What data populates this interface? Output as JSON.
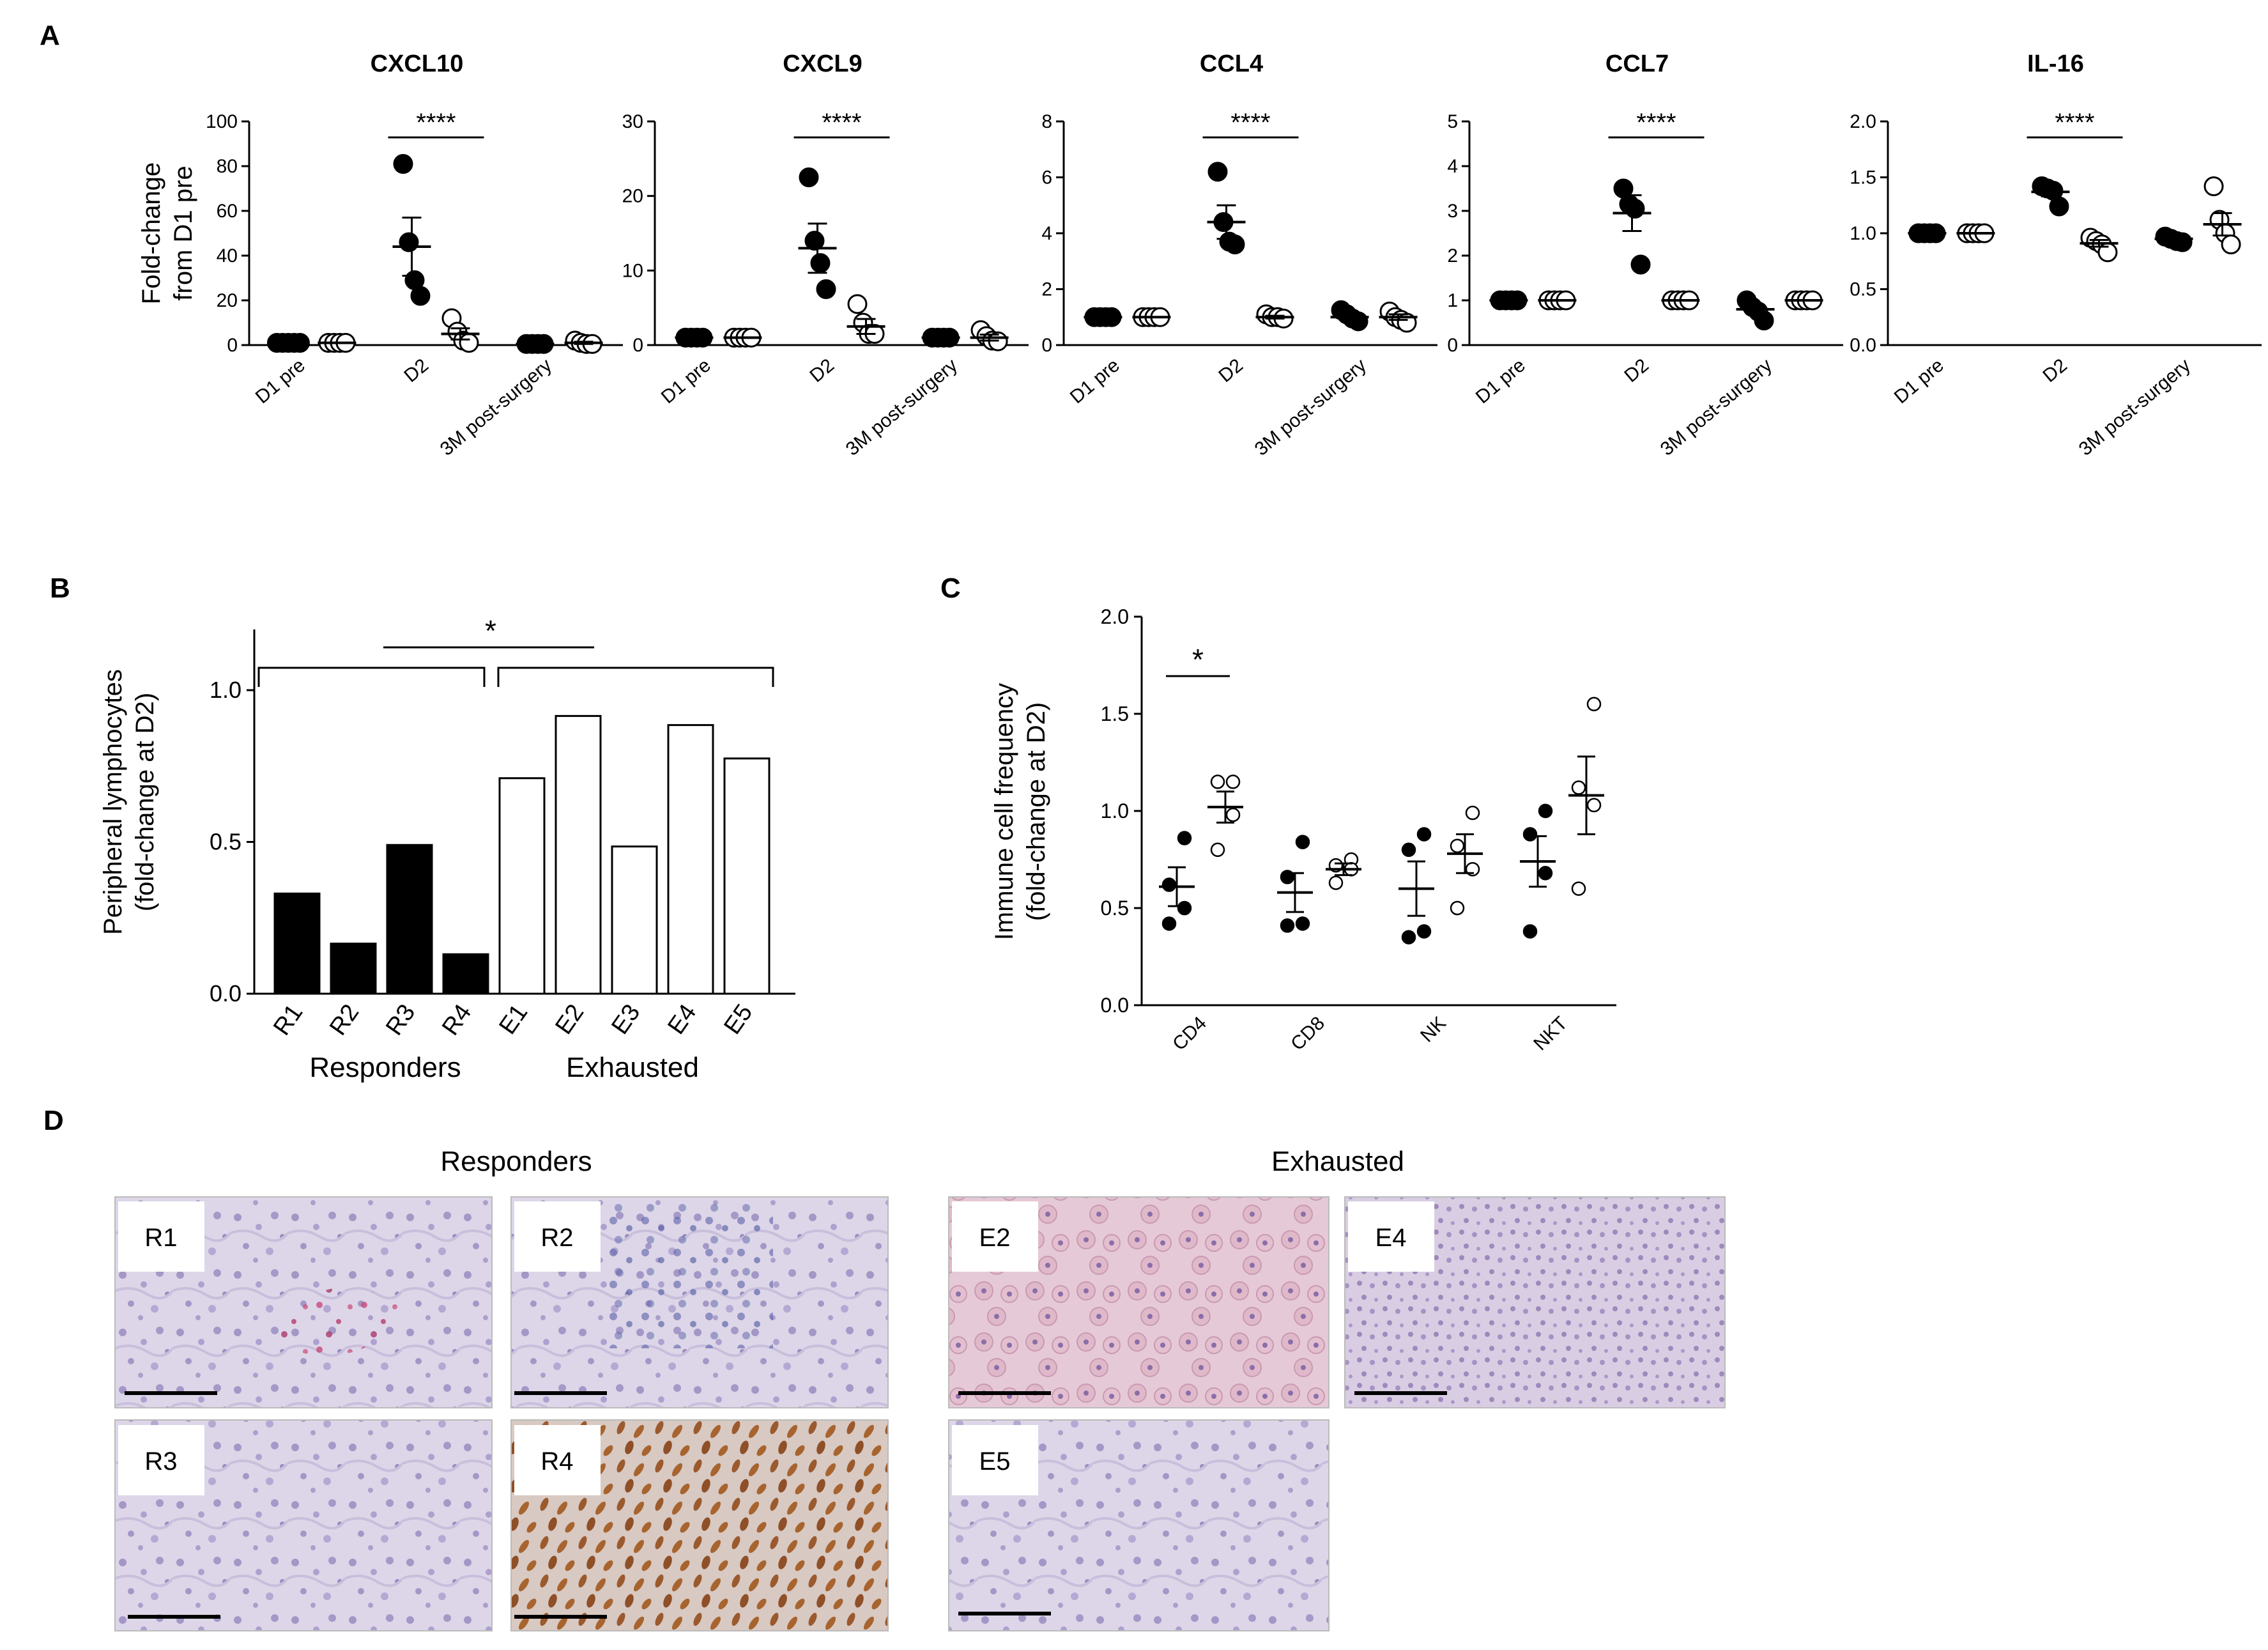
{
  "panel_letters": {
    "A": "A",
    "B": "B",
    "C": "C",
    "D": "D"
  },
  "colors": {
    "black": "#000000",
    "white": "#ffffff"
  },
  "chart_data": [
    {
      "type": "scatter",
      "title": "CXCL10",
      "ylabel": "Fold-change from D1 pre",
      "ylabel_lines": [
        "Fold-change",
        "from D1 pre"
      ],
      "categories": [
        "D1 pre",
        "D2",
        "3M post-surgery"
      ],
      "ylim": [
        0,
        100
      ],
      "yticks": [
        "0",
        "20",
        "40",
        "60",
        "80",
        "100"
      ],
      "series": [
        {
          "marker": "filled",
          "groups": [
            {
              "cat": 0,
              "points": [
                1,
                1,
                1,
                1,
                1
              ],
              "mean": 1,
              "sem": 0
            },
            {
              "cat": 1,
              "points": [
                81,
                46,
                29,
                22
              ],
              "mean": 44,
              "sem": 13
            },
            {
              "cat": 2,
              "points": [
                0.5,
                0.5,
                0.5,
                0.5
              ],
              "mean": 0.5,
              "sem": 0
            }
          ]
        },
        {
          "marker": "open",
          "groups": [
            {
              "cat": 0,
              "points": [
                1,
                1,
                1,
                1
              ],
              "mean": 1,
              "sem": 0
            },
            {
              "cat": 1,
              "points": [
                12,
                6,
                2,
                1
              ],
              "mean": 5,
              "sem": 2.5
            },
            {
              "cat": 2,
              "points": [
                2,
                1,
                0.5,
                0.5
              ],
              "mean": 1,
              "sem": 0.5
            }
          ]
        }
      ],
      "significance": "****"
    },
    {
      "type": "scatter",
      "title": "CXCL9",
      "categories": [
        "D1 pre",
        "D2",
        "3M post-surgery"
      ],
      "ylim": [
        0,
        30
      ],
      "yticks": [
        "0",
        "10",
        "20",
        "30"
      ],
      "series": [
        {
          "marker": "filled",
          "groups": [
            {
              "cat": 0,
              "points": [
                1,
                1,
                1,
                1
              ],
              "mean": 1,
              "sem": 0
            },
            {
              "cat": 1,
              "points": [
                22.5,
                14,
                11,
                7.5
              ],
              "mean": 13,
              "sem": 3.3
            },
            {
              "cat": 2,
              "points": [
                1,
                1,
                1,
                1
              ],
              "mean": 1,
              "sem": 0
            }
          ]
        },
        {
          "marker": "open",
          "groups": [
            {
              "cat": 0,
              "points": [
                1,
                1,
                1,
                1
              ],
              "mean": 1,
              "sem": 0
            },
            {
              "cat": 1,
              "points": [
                5.5,
                3,
                1.5,
                1.5
              ],
              "mean": 2.5,
              "sem": 1
            },
            {
              "cat": 2,
              "points": [
                2,
                1.2,
                0.6,
                0.5
              ],
              "mean": 1,
              "sem": 0.4
            }
          ]
        }
      ],
      "significance": "****"
    },
    {
      "type": "scatter",
      "title": "CCL4",
      "categories": [
        "D1 pre",
        "D2",
        "3M post-surgery"
      ],
      "ylim": [
        0,
        8
      ],
      "yticks": [
        "0",
        "2",
        "4",
        "6",
        "8"
      ],
      "series": [
        {
          "marker": "filled",
          "groups": [
            {
              "cat": 0,
              "points": [
                1,
                1,
                1,
                1
              ],
              "mean": 1,
              "sem": 0
            },
            {
              "cat": 1,
              "points": [
                6.2,
                4.4,
                3.7,
                3.6
              ],
              "mean": 4.4,
              "sem": 0.6
            },
            {
              "cat": 2,
              "points": [
                1.25,
                1.1,
                0.95,
                0.85
              ],
              "mean": 1,
              "sem": 0.1
            }
          ]
        },
        {
          "marker": "open",
          "groups": [
            {
              "cat": 0,
              "points": [
                1,
                1,
                1,
                1
              ],
              "mean": 1,
              "sem": 0
            },
            {
              "cat": 1,
              "points": [
                1.1,
                1,
                1,
                0.95
              ],
              "mean": 1,
              "sem": 0.05
            },
            {
              "cat": 2,
              "points": [
                1.2,
                1,
                0.9,
                0.8
              ],
              "mean": 1,
              "sem": 0.1
            }
          ]
        }
      ],
      "significance": "****"
    },
    {
      "type": "scatter",
      "title": "CCL7",
      "categories": [
        "D1 pre",
        "D2",
        "3M post-surgery"
      ],
      "ylim": [
        0,
        5
      ],
      "yticks": [
        "0",
        "1",
        "2",
        "3",
        "4",
        "5"
      ],
      "series": [
        {
          "marker": "filled",
          "groups": [
            {
              "cat": 0,
              "points": [
                1,
                1,
                1,
                1
              ],
              "mean": 1,
              "sem": 0
            },
            {
              "cat": 1,
              "points": [
                3.5,
                3.15,
                3.05,
                1.8
              ],
              "mean": 2.95,
              "sem": 0.4
            },
            {
              "cat": 2,
              "points": [
                1,
                0.85,
                0.75,
                0.55
              ],
              "mean": 0.8,
              "sem": 0.1
            }
          ]
        },
        {
          "marker": "open",
          "groups": [
            {
              "cat": 0,
              "points": [
                1,
                1,
                1,
                1
              ],
              "mean": 1,
              "sem": 0
            },
            {
              "cat": 1,
              "points": [
                1,
                1,
                1,
                1
              ],
              "mean": 1,
              "sem": 0
            },
            {
              "cat": 2,
              "points": [
                1,
                1,
                1,
                1
              ],
              "mean": 1,
              "sem": 0
            }
          ]
        }
      ],
      "significance": "****"
    },
    {
      "type": "scatter",
      "title": "IL-16",
      "categories": [
        "D1 pre",
        "D2",
        "3M post-surgery"
      ],
      "ylim": [
        0,
        2
      ],
      "yticks": [
        "0.0",
        "0.5",
        "1.0",
        "1.5",
        "2.0"
      ],
      "series": [
        {
          "marker": "filled",
          "groups": [
            {
              "cat": 0,
              "points": [
                1,
                1,
                1,
                1
              ],
              "mean": 1,
              "sem": 0
            },
            {
              "cat": 1,
              "points": [
                1.42,
                1.4,
                1.38,
                1.24
              ],
              "mean": 1.37,
              "sem": 0.04
            },
            {
              "cat": 2,
              "points": [
                0.97,
                0.95,
                0.93,
                0.92
              ],
              "mean": 0.95,
              "sem": 0.02
            }
          ]
        },
        {
          "marker": "open",
          "groups": [
            {
              "cat": 0,
              "points": [
                1,
                1,
                1,
                1
              ],
              "mean": 1,
              "sem": 0
            },
            {
              "cat": 1,
              "points": [
                0.96,
                0.93,
                0.9,
                0.83
              ],
              "mean": 0.91,
              "sem": 0.03
            },
            {
              "cat": 2,
              "points": [
                1.42,
                1.12,
                1,
                0.9
              ],
              "mean": 1.08,
              "sem": 0.1
            }
          ]
        }
      ],
      "significance": "****"
    },
    {
      "type": "bar",
      "title": "",
      "ylabel": "Peripheral lymphocytes (fold-change at D2)",
      "ylabel_lines": [
        "Peripheral lymphocytes",
        "(fold-change at D2)"
      ],
      "categories": [
        "R1",
        "R2",
        "R3",
        "R4",
        "E1",
        "E2",
        "E3",
        "E4",
        "E5"
      ],
      "values": [
        0.33,
        0.165,
        0.49,
        0.13,
        0.71,
        0.915,
        0.485,
        0.885,
        0.775
      ],
      "fills": [
        "filled",
        "filled",
        "filled",
        "filled",
        "open",
        "open",
        "open",
        "open",
        "open"
      ],
      "ylim": [
        0,
        1.2
      ],
      "yticks": [
        "0.0",
        "0.5",
        "1.0"
      ],
      "groups": [
        "Responders",
        "Exhausted"
      ],
      "significance": "*"
    },
    {
      "type": "scatter",
      "title": "",
      "ylabel": "Immune cell frequency (fold-change at D2)",
      "ylabel_lines": [
        "Immune cell frequency",
        "(fold-change at D2)"
      ],
      "categories": [
        "CD4",
        "CD8",
        "NK",
        "NKT"
      ],
      "ylim": [
        0,
        2
      ],
      "yticks": [
        "0.0",
        "0.5",
        "1.0",
        "1.5",
        "2.0"
      ],
      "series": [
        {
          "marker": "filled",
          "groups": [
            {
              "cat": 0,
              "points": [
                0.86,
                0.62,
                0.5,
                0.42
              ],
              "mean": 0.61,
              "sem": 0.1
            },
            {
              "cat": 1,
              "points": [
                0.84,
                0.66,
                0.42,
                0.41
              ],
              "mean": 0.58,
              "sem": 0.1
            },
            {
              "cat": 2,
              "points": [
                0.88,
                0.8,
                0.38,
                0.35
              ],
              "mean": 0.6,
              "sem": 0.14
            },
            {
              "cat": 3,
              "points": [
                1.0,
                0.88,
                0.68,
                0.38
              ],
              "mean": 0.74,
              "sem": 0.13
            }
          ]
        },
        {
          "marker": "open",
          "groups": [
            {
              "cat": 0,
              "points": [
                1.15,
                1.15,
                0.98,
                0.8
              ],
              "mean": 1.02,
              "sem": 0.08
            },
            {
              "cat": 1,
              "points": [
                0.75,
                0.72,
                0.7,
                0.63
              ],
              "mean": 0.7,
              "sem": 0.03
            },
            {
              "cat": 2,
              "points": [
                0.99,
                0.82,
                0.7,
                0.5
              ],
              "mean": 0.78,
              "sem": 0.1
            },
            {
              "cat": 3,
              "points": [
                1.55,
                1.12,
                1.03,
                0.6
              ],
              "mean": 1.08,
              "sem": 0.2
            }
          ]
        }
      ],
      "significance": "*"
    }
  ],
  "panel_d": {
    "group_titles": [
      "Responders",
      "Exhausted"
    ],
    "images": [
      {
        "label": "R1",
        "stain": "light-purple with pink-red cells"
      },
      {
        "label": "R2",
        "stain": "light-purple with blue nuclei"
      },
      {
        "label": "R3",
        "stain": "light-purple"
      },
      {
        "label": "R4",
        "stain": "brown nuclei"
      },
      {
        "label": "E2",
        "stain": "pink-purple"
      },
      {
        "label": "E4",
        "stain": "light-purple"
      },
      {
        "label": "E5",
        "stain": "light-purple"
      }
    ]
  }
}
